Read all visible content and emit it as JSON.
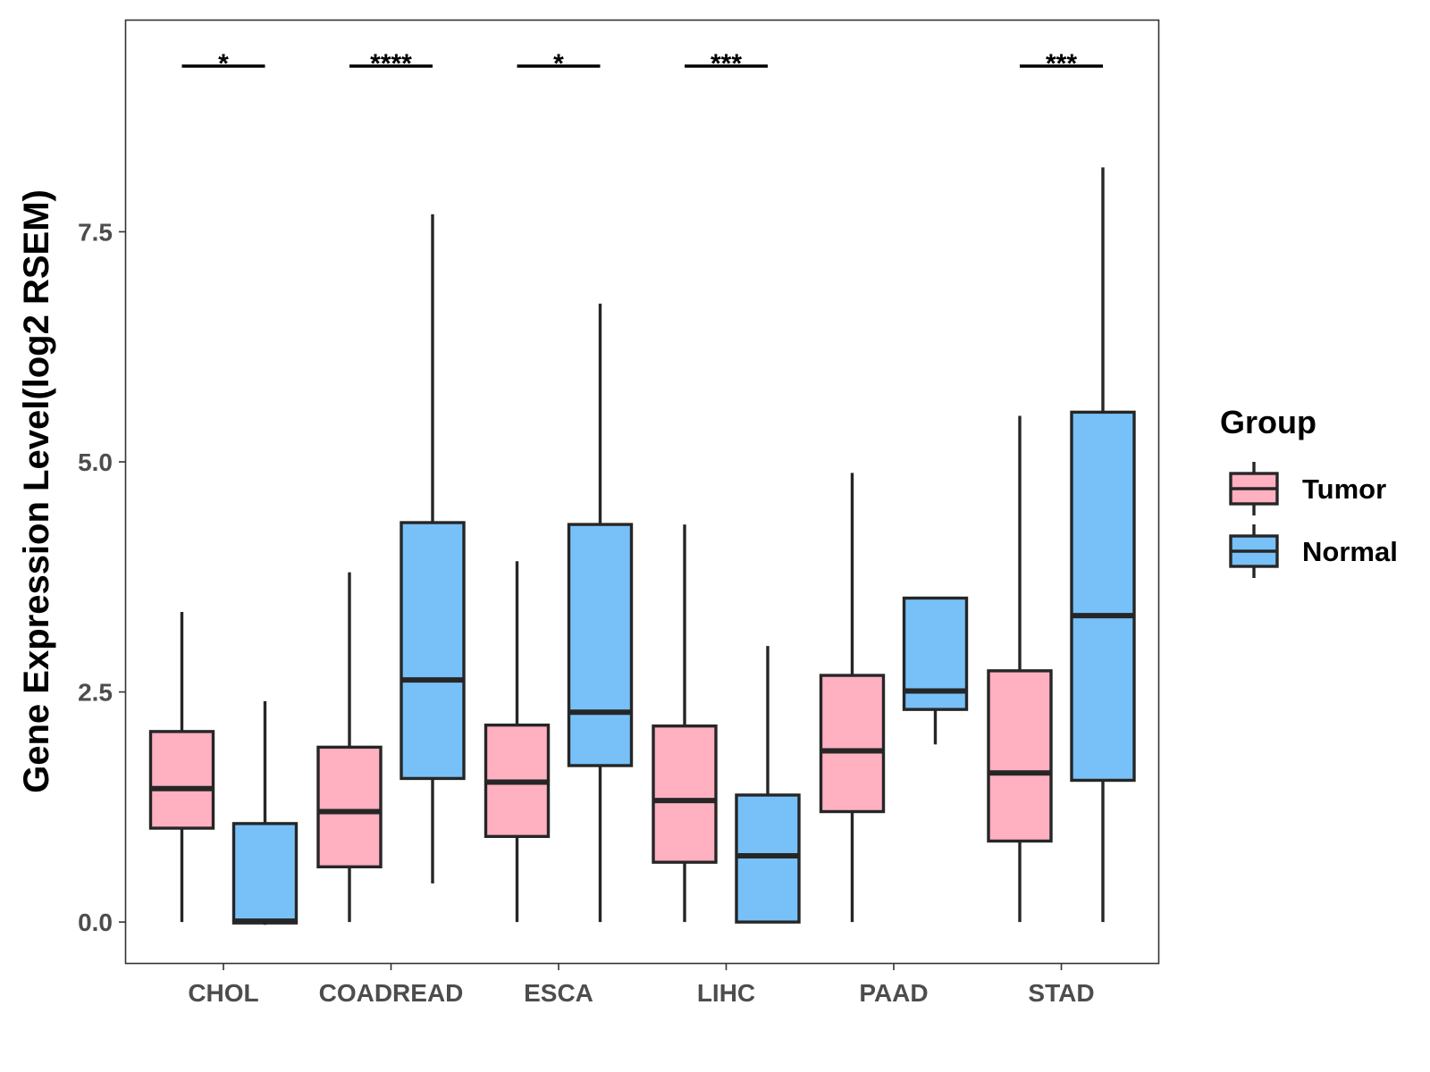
{
  "chart_data": {
    "type": "boxplot",
    "title": "",
    "xlabel": "",
    "ylabel": "Gene Expression Level(log2 RSEM)",
    "ylim": [
      -0.45,
      9.8
    ],
    "yticks": [
      0,
      2.5,
      5,
      7.5
    ],
    "ytick_labels": [
      "0.0",
      "2.5",
      "5.0",
      "7.5"
    ],
    "categories": [
      "CHOL",
      "COADREAD",
      "ESCA",
      "LIHC",
      "PAAD",
      "STAD"
    ],
    "legend": {
      "title": "Group",
      "position": "right",
      "entries": [
        "Tumor",
        "Normal"
      ]
    },
    "series": [
      {
        "name": "Tumor",
        "color": "#ffb0c1",
        "boxes": [
          {
            "min": 0.0,
            "q1": 1.02,
            "median": 1.45,
            "q3": 2.07,
            "max": 3.37
          },
          {
            "min": 0.0,
            "q1": 0.6,
            "median": 1.2,
            "q3": 1.9,
            "max": 3.8
          },
          {
            "min": 0.0,
            "q1": 0.93,
            "median": 1.52,
            "q3": 2.14,
            "max": 3.92
          },
          {
            "min": 0.0,
            "q1": 0.65,
            "median": 1.32,
            "q3": 2.13,
            "max": 4.32
          },
          {
            "min": 0.0,
            "q1": 1.2,
            "median": 1.86,
            "q3": 2.68,
            "max": 4.88
          },
          {
            "min": 0.0,
            "q1": 0.88,
            "median": 1.62,
            "q3": 2.73,
            "max": 5.5
          }
        ]
      },
      {
        "name": "Normal",
        "color": "#77c1f8",
        "boxes": [
          {
            "min": -0.03,
            "q1": -0.01,
            "median": 0.01,
            "q3": 1.07,
            "max": 2.4
          },
          {
            "min": 0.42,
            "q1": 1.56,
            "median": 2.63,
            "q3": 4.34,
            "max": 7.69
          },
          {
            "min": 0.0,
            "q1": 1.7,
            "median": 2.28,
            "q3": 4.32,
            "max": 6.72
          },
          {
            "min": 0.0,
            "q1": 0.0,
            "median": 0.72,
            "q3": 1.38,
            "max": 3.0
          },
          {
            "min": 1.93,
            "q1": 2.31,
            "median": 2.51,
            "q3": 3.52,
            "max": 3.52
          },
          {
            "min": 0.0,
            "q1": 1.54,
            "median": 3.33,
            "q3": 5.54,
            "max": 8.2
          }
        ]
      }
    ],
    "significance": [
      "*",
      "****",
      "*",
      "***",
      "",
      "***"
    ],
    "significance_level": 9.3
  }
}
